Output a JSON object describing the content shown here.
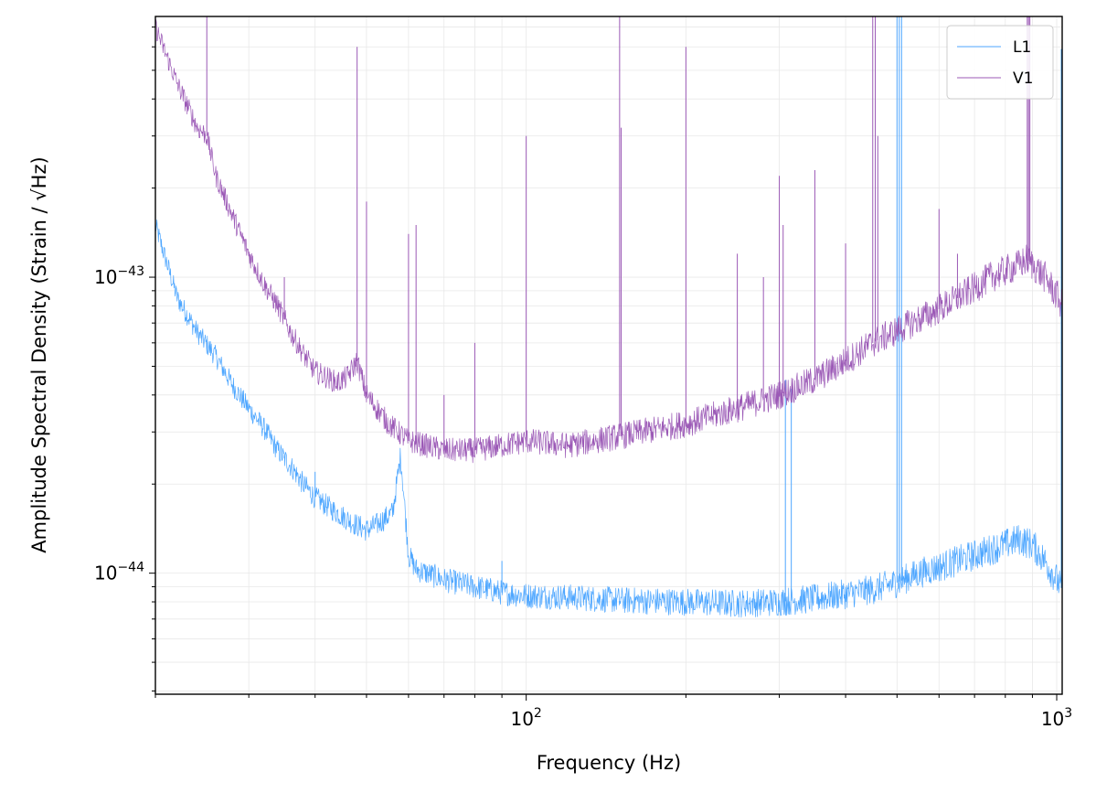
{
  "chart_data": {
    "type": "line",
    "title": "",
    "xlabel": "Frequency (Hz)",
    "ylabel": "Amplitude Spectral Density (Strain / √Hz)",
    "xscale": "log",
    "yscale": "log",
    "xlim": [
      20,
      1024
    ],
    "ylim": [
      3.9e-45,
      7.6e-43
    ],
    "grid": true,
    "legend_position": "top-right",
    "xticks": [
      {
        "value": 100,
        "base": "10",
        "exp": "2"
      },
      {
        "value": 1000,
        "base": "10",
        "exp": "3"
      }
    ],
    "yticks": [
      {
        "value": 1e-44,
        "base": "10",
        "exp": "−44"
      },
      {
        "value": 1e-43,
        "base": "10",
        "exp": "−43"
      }
    ],
    "series": [
      {
        "name": "L1",
        "color": "#4da6ff",
        "x": [
          20,
          22,
          24,
          26,
          28,
          30,
          32,
          34,
          36,
          38,
          40,
          44,
          48,
          50,
          52,
          56,
          58,
          60,
          62,
          65,
          70,
          80,
          90,
          100,
          120,
          150,
          200,
          250,
          300,
          350,
          400,
          450,
          500,
          550,
          600,
          650,
          700,
          750,
          800,
          850,
          900,
          950,
          1000,
          1024
        ],
        "y": [
          1.5e-43,
          8.5e-44,
          6.5e-44,
          5.4e-44,
          4.3e-44,
          3.6e-44,
          3.1e-44,
          2.6e-44,
          2.3e-44,
          2e-44,
          1.8e-44,
          1.6e-44,
          1.45e-44,
          1.4e-44,
          1.45e-44,
          1.6e-44,
          2.5e-44,
          1.15e-44,
          1.03e-44,
          1e-44,
          9.5e-45,
          9e-45,
          8.6e-45,
          8.4e-45,
          8.3e-45,
          8.1e-45,
          8e-45,
          7.9e-45,
          8e-45,
          8.2e-45,
          8.5e-45,
          8.8e-45,
          9.3e-45,
          1e-44,
          1.05e-44,
          1.1e-44,
          1.15e-44,
          1.2e-44,
          1.25e-44,
          1.3e-44,
          1.25e-44,
          1.1e-44,
          9.5e-45,
          8.8e-45
        ],
        "spikes": [
          {
            "x": 35,
            "y": 2.5e-44
          },
          {
            "x": 40,
            "y": 2.2e-44
          },
          {
            "x": 90,
            "y": 1.1e-44
          },
          {
            "x": 308,
            "y": 4.5e-44
          },
          {
            "x": 316,
            "y": 4.2e-44
          },
          {
            "x": 500,
            "y": 7.6e-43
          },
          {
            "x": 505,
            "y": 7.6e-43
          },
          {
            "x": 510,
            "y": 7.6e-43
          },
          {
            "x": 1020,
            "y": 5.9e-43
          }
        ]
      },
      {
        "name": "V1",
        "color": "#9b59b6",
        "x": [
          20,
          22,
          24,
          25,
          26,
          28,
          30,
          32,
          34,
          36,
          38,
          40,
          42,
          44,
          46,
          48,
          50,
          55,
          60,
          70,
          80,
          90,
          100,
          120,
          150,
          200,
          250,
          300,
          350,
          400,
          450,
          500,
          550,
          600,
          650,
          700,
          750,
          800,
          850,
          880,
          900,
          950,
          1000,
          1024
        ],
        "y": [
          7e-43,
          4.5e-43,
          3.2e-43,
          3e-43,
          2.2e-43,
          1.6e-43,
          1.2e-43,
          9.5e-44,
          8e-44,
          6.5e-44,
          5.5e-44,
          4.8e-44,
          4.6e-44,
          4.4e-44,
          4.6e-44,
          5.2e-44,
          4e-44,
          3.2e-44,
          2.8e-44,
          2.6e-44,
          2.6e-44,
          2.7e-44,
          2.8e-44,
          2.7e-44,
          2.9e-44,
          3.2e-44,
          3.6e-44,
          4e-44,
          4.5e-44,
          5.2e-44,
          6e-44,
          6.6e-44,
          7.2e-44,
          7.8e-44,
          8.5e-44,
          9.2e-44,
          1e-43,
          1.05e-43,
          1.1e-43,
          1.15e-43,
          1.1e-43,
          1e-43,
          8.7e-44,
          8e-44
        ],
        "spikes": [
          {
            "x": 25,
            "y": 7.6e-43
          },
          {
            "x": 35,
            "y": 1e-43
          },
          {
            "x": 48,
            "y": 6e-43
          },
          {
            "x": 50,
            "y": 1.8e-43
          },
          {
            "x": 60,
            "y": 1.4e-43
          },
          {
            "x": 62,
            "y": 1.5e-43
          },
          {
            "x": 70,
            "y": 4e-44
          },
          {
            "x": 80,
            "y": 6e-44
          },
          {
            "x": 100,
            "y": 3e-43
          },
          {
            "x": 150,
            "y": 7.6e-43
          },
          {
            "x": 151,
            "y": 3.2e-43
          },
          {
            "x": 200,
            "y": 6e-43
          },
          {
            "x": 250,
            "y": 1.2e-43
          },
          {
            "x": 280,
            "y": 1e-43
          },
          {
            "x": 300,
            "y": 2.2e-43
          },
          {
            "x": 305,
            "y": 1.5e-43
          },
          {
            "x": 350,
            "y": 2.3e-43
          },
          {
            "x": 400,
            "y": 1.3e-43
          },
          {
            "x": 450,
            "y": 7.6e-43
          },
          {
            "x": 455,
            "y": 7.6e-43
          },
          {
            "x": 460,
            "y": 3e-43
          },
          {
            "x": 600,
            "y": 1.7e-43
          },
          {
            "x": 650,
            "y": 1.2e-43
          },
          {
            "x": 880,
            "y": 7.6e-43
          },
          {
            "x": 885,
            "y": 7.6e-43
          },
          {
            "x": 890,
            "y": 7.6e-43
          }
        ]
      }
    ]
  }
}
